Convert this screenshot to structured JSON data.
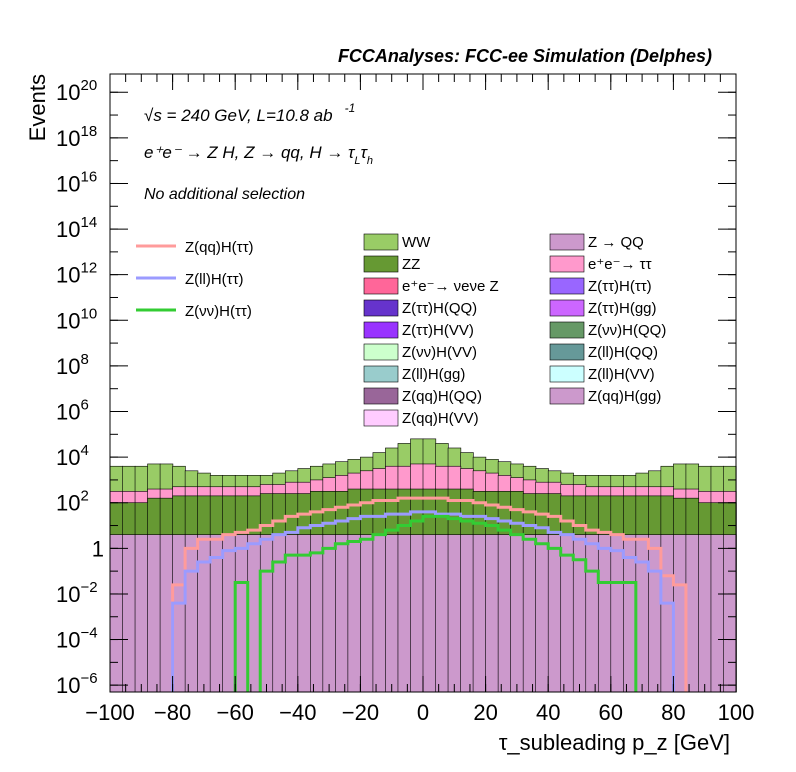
{
  "chart_data": {
    "type": "stacked-histogram",
    "title": "FCCAnalyses: FCC-ee Simulation (Delphes)",
    "ylabel": "Events",
    "xlabel": "τ_subleading p_z [GeV]",
    "xlim": [
      -100,
      100
    ],
    "ylim_log10": [
      -6.3,
      20.8
    ],
    "y_scale": "log",
    "x_ticks": [
      -100,
      -80,
      -60,
      -40,
      -20,
      0,
      20,
      40,
      60,
      80,
      100
    ],
    "y_ticks": [
      {
        "base": "10",
        "exp": "20",
        "v": 20
      },
      {
        "base": "10",
        "exp": "18",
        "v": 18
      },
      {
        "base": "10",
        "exp": "16",
        "v": 16
      },
      {
        "base": "10",
        "exp": "14",
        "v": 14
      },
      {
        "base": "10",
        "exp": "12",
        "v": 12
      },
      {
        "base": "10",
        "exp": "10",
        "v": 10
      },
      {
        "base": "10",
        "exp": "8",
        "v": 8
      },
      {
        "base": "10",
        "exp": "6",
        "v": 6
      },
      {
        "base": "10",
        "exp": "4",
        "v": 4
      },
      {
        "base": "10",
        "exp": "2",
        "v": 2
      },
      {
        "base": "1",
        "exp": "",
        "v": 0
      },
      {
        "base": "10",
        "exp": "-2",
        "v": -2
      },
      {
        "base": "10",
        "exp": "-4",
        "v": -4
      },
      {
        "base": "10",
        "exp": "-6",
        "v": -6
      }
    ],
    "annotations": {
      "energy": "√s = 240 GeV, L=10.8 ab",
      "energy_exp": "-1",
      "process": "e⁺e⁻ → Z H, Z → qq, H → τ",
      "process_sub1": "L",
      "process_tau": "τ",
      "process_sub2": "h",
      "selection": "No additional selection"
    },
    "line_legend": [
      {
        "name": "Z(qq)H(ττ)",
        "color": "#ff9b9b"
      },
      {
        "name": "Z(ll)H(ττ)",
        "color": "#9b9bff"
      },
      {
        "name": "Z(νν)H(ττ)",
        "color": "#33cc33"
      }
    ],
    "stack_legend": [
      {
        "name": "WW",
        "color": "#99cc66"
      },
      {
        "name": "Z → QQ",
        "color": "#cc99cc"
      },
      {
        "name": "ZZ",
        "color": "#669933"
      },
      {
        "name": "e⁺e⁻→ ττ",
        "color": "#ff99cc"
      },
      {
        "name": "e⁺e⁻→ νeνe Z",
        "color": "#ff6699"
      },
      {
        "name": "Z(ττ)H(ττ)",
        "color": "#9966ff"
      },
      {
        "name": "Z(ττ)H(QQ)",
        "color": "#6633cc"
      },
      {
        "name": "Z(ττ)H(gg)",
        "color": "#cc66ff"
      },
      {
        "name": "Z(ττ)H(VV)",
        "color": "#9933ff"
      },
      {
        "name": "Z(νν)H(QQ)",
        "color": "#669966"
      },
      {
        "name": "Z(νν)H(VV)",
        "color": "#ccffcc"
      },
      {
        "name": "Z(ll)H(QQ)",
        "color": "#669999"
      },
      {
        "name": "Z(ll)H(gg)",
        "color": "#99cccc"
      },
      {
        "name": "Z(ll)H(VV)",
        "color": "#ccffff"
      },
      {
        "name": "Z(qq)H(QQ)",
        "color": "#996699"
      },
      {
        "name": "Z(qq)H(gg)",
        "color": "#cc99cc"
      },
      {
        "name": "Z(qq)H(VV)",
        "color": "#ffccff"
      }
    ],
    "bin_edges": [
      -100,
      100
    ],
    "bin_width": 4,
    "stack_layers_log10": [
      {
        "name": "Z → QQ",
        "color": "#cc99cc",
        "values": [
          0.6,
          0.6,
          0.6,
          0.6,
          0.6,
          0.6,
          0.6,
          0.6,
          0.6,
          0.6,
          0.6,
          0.6,
          0.6,
          0.6,
          0.6,
          0.6,
          0.6,
          0.6,
          0.6,
          0.6,
          0.6,
          0.6,
          0.6,
          0.6,
          0.6,
          0.6,
          0.6,
          0.6,
          0.6,
          0.6,
          0.6,
          0.6,
          0.6,
          0.6,
          0.6,
          0.6,
          0.6,
          0.6,
          0.6,
          0.6,
          0.6,
          0.6,
          0.6,
          0.6,
          0.6,
          0.6,
          0.6,
          0.6,
          0.6,
          0.6
        ]
      },
      {
        "name": "ZZ",
        "color": "#669933",
        "values": [
          2.0,
          2.0,
          2.0,
          2.2,
          2.2,
          2.3,
          2.3,
          2.3,
          2.3,
          2.3,
          2.3,
          2.3,
          2.4,
          2.4,
          2.4,
          2.4,
          2.5,
          2.5,
          2.5,
          2.6,
          2.6,
          2.6,
          2.6,
          2.6,
          2.6,
          2.6,
          2.6,
          2.6,
          2.6,
          2.5,
          2.5,
          2.5,
          2.5,
          2.4,
          2.4,
          2.4,
          2.3,
          2.3,
          2.3,
          2.3,
          2.3,
          2.3,
          2.3,
          2.3,
          2.3,
          2.2,
          2.2,
          2.0,
          2.0,
          2.0
        ]
      },
      {
        "name": "e⁺e⁻→ ττ",
        "color": "#ff99cc",
        "values": [
          2.5,
          2.5,
          2.5,
          2.6,
          2.6,
          2.7,
          2.7,
          2.7,
          2.7,
          2.7,
          2.7,
          2.7,
          2.8,
          2.8,
          2.9,
          2.9,
          3.0,
          3.1,
          3.2,
          3.3,
          3.4,
          3.5,
          3.6,
          3.6,
          3.7,
          3.7,
          3.6,
          3.6,
          3.5,
          3.4,
          3.3,
          3.2,
          3.1,
          3.0,
          2.9,
          2.9,
          2.8,
          2.8,
          2.7,
          2.7,
          2.7,
          2.7,
          2.7,
          2.7,
          2.7,
          2.6,
          2.6,
          2.5,
          2.5,
          2.5
        ]
      },
      {
        "name": "WW",
        "color": "#99cc66",
        "values": [
          3.6,
          3.6,
          3.6,
          3.7,
          3.7,
          3.6,
          3.4,
          3.3,
          3.2,
          3.2,
          3.2,
          3.2,
          3.2,
          3.3,
          3.4,
          3.5,
          3.6,
          3.7,
          3.8,
          3.9,
          4.0,
          4.2,
          4.4,
          4.6,
          4.8,
          4.8,
          4.6,
          4.4,
          4.2,
          4.0,
          3.9,
          3.8,
          3.7,
          3.6,
          3.5,
          3.4,
          3.3,
          3.2,
          3.2,
          3.2,
          3.2,
          3.2,
          3.3,
          3.4,
          3.6,
          3.7,
          3.7,
          3.6,
          3.6,
          3.6
        ]
      }
    ],
    "lines_log10": [
      {
        "name": "Z(qq)H(ττ)",
        "color": "#ff9b9b",
        "values": [
          null,
          null,
          null,
          null,
          null,
          -1.6,
          0.0,
          0.4,
          0.4,
          0.6,
          0.7,
          0.8,
          1.0,
          1.2,
          1.4,
          1.5,
          1.6,
          1.7,
          1.8,
          1.9,
          2.0,
          2.1,
          2.1,
          2.2,
          2.2,
          2.2,
          2.2,
          2.1,
          2.1,
          2.0,
          1.9,
          1.8,
          1.7,
          1.6,
          1.5,
          1.4,
          1.2,
          1.0,
          0.8,
          0.7,
          0.6,
          0.4,
          0.4,
          0.0,
          -1.2,
          -1.6,
          null,
          null,
          null,
          null
        ]
      },
      {
        "name": "Z(ll)H(ττ)",
        "color": "#9b9bff",
        "values": [
          null,
          null,
          null,
          null,
          null,
          -2.4,
          -1.0,
          -0.6,
          -0.4,
          -0.1,
          0.0,
          0.2,
          0.4,
          0.6,
          0.7,
          0.9,
          1.0,
          1.1,
          1.2,
          1.3,
          1.4,
          1.4,
          1.5,
          1.5,
          1.6,
          1.6,
          1.5,
          1.5,
          1.4,
          1.4,
          1.3,
          1.2,
          1.1,
          1.0,
          0.9,
          0.7,
          0.6,
          0.4,
          0.2,
          0.0,
          -0.1,
          -0.4,
          -0.6,
          -1.0,
          -2.4,
          null,
          null,
          null,
          null,
          null
        ]
      },
      {
        "name": "Z(νν)H(ττ)",
        "color": "#33cc33",
        "values": [
          null,
          null,
          null,
          null,
          null,
          null,
          null,
          null,
          null,
          null,
          -1.5,
          null,
          -1.0,
          -0.6,
          -0.3,
          -0.3,
          -0.2,
          0.0,
          0.2,
          0.3,
          0.4,
          0.6,
          0.8,
          1.0,
          1.2,
          1.4,
          1.4,
          1.3,
          1.2,
          1.1,
          1.0,
          0.8,
          0.6,
          0.4,
          0.2,
          0.0,
          -0.3,
          -0.5,
          -1.0,
          -1.5,
          -1.5,
          -1.5,
          null,
          null,
          null,
          null,
          null,
          null,
          null,
          null
        ]
      }
    ]
  }
}
